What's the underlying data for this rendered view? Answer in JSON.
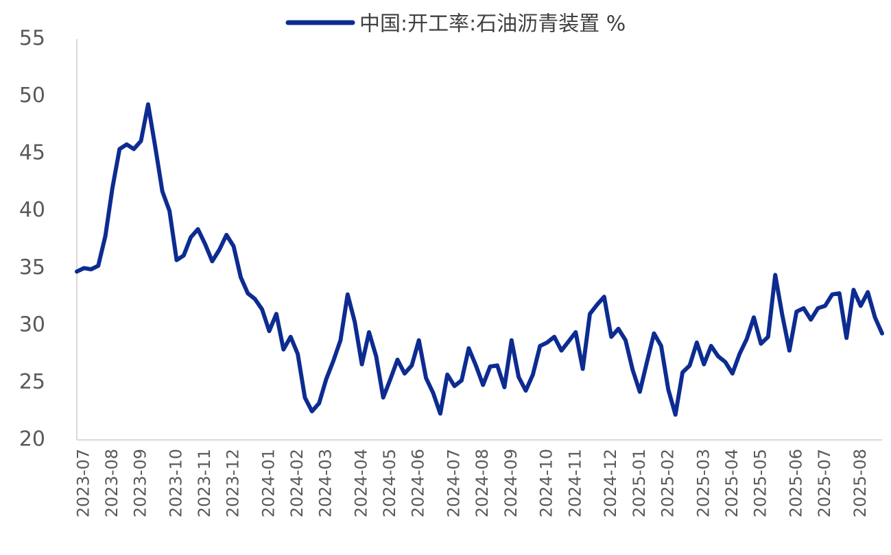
{
  "chart_data": {
    "type": "line",
    "categories": [
      null,
      "2023-07",
      null,
      null,
      null,
      "2023-08",
      null,
      null,
      null,
      "2023-09",
      null,
      null,
      null,
      null,
      "2023-10",
      null,
      null,
      null,
      "2023-11",
      null,
      null,
      null,
      "2023-12",
      null,
      null,
      null,
      null,
      "2024-01",
      null,
      null,
      null,
      "2024-02",
      null,
      null,
      null,
      "2024-03",
      null,
      null,
      null,
      null,
      "2024-04",
      null,
      null,
      null,
      "2024-05",
      null,
      null,
      null,
      "2024-06",
      null,
      null,
      null,
      null,
      "2024-07",
      null,
      null,
      null,
      "2024-08",
      null,
      null,
      null,
      "2024-09",
      null,
      null,
      null,
      null,
      "2024-10",
      null,
      null,
      null,
      "2024-11",
      null,
      null,
      null,
      null,
      "2024-12",
      null,
      null,
      null,
      "2025-01",
      null,
      null,
      null,
      "2025-02",
      null,
      null,
      null,
      null,
      "2025-03",
      null,
      null,
      null,
      "2025-04",
      null,
      null,
      null,
      "2025-05",
      null,
      null,
      null,
      null,
      "2025-06",
      null,
      null,
      null,
      "2025-07",
      null,
      null,
      null,
      null,
      "2025-08",
      null,
      null,
      null
    ],
    "series": [
      {
        "name": "中国:开工率:石油沥青装置 %",
        "color": "#0d2c91",
        "values": [
          34.7,
          35.0,
          34.9,
          35.2,
          37.8,
          42.0,
          45.4,
          45.8,
          45.4,
          46.1,
          49.3,
          45.6,
          41.7,
          40.0,
          35.7,
          36.1,
          37.7,
          38.4,
          37.1,
          35.6,
          36.6,
          37.9,
          36.9,
          34.2,
          32.8,
          32.3,
          31.4,
          29.5,
          31.0,
          27.9,
          29.0,
          27.5,
          23.7,
          22.5,
          23.2,
          25.3,
          26.9,
          28.7,
          32.7,
          30.3,
          26.6,
          29.4,
          27.3,
          23.7,
          25.3,
          27.0,
          25.8,
          26.5,
          28.7,
          25.4,
          24.1,
          22.3,
          25.7,
          24.7,
          25.2,
          28.0,
          26.5,
          24.8,
          26.4,
          26.5,
          24.6,
          28.7,
          25.5,
          24.3,
          25.7,
          28.2,
          28.5,
          29.0,
          27.8,
          28.6,
          29.4,
          26.2,
          31.0,
          31.8,
          32.5,
          29.0,
          29.7,
          28.7,
          26.1,
          24.2,
          26.8,
          29.3,
          28.2,
          24.4,
          22.2,
          25.9,
          26.5,
          28.5,
          26.6,
          28.2,
          27.3,
          26.8,
          25.8,
          27.5,
          28.8,
          30.7,
          28.4,
          29.0,
          34.4,
          30.9,
          27.8,
          31.2,
          31.5,
          30.5,
          31.5,
          31.7,
          32.7,
          32.8,
          28.9,
          33.1,
          31.7,
          32.9,
          30.7,
          29.3
        ]
      }
    ],
    "ylim": [
      20,
      55
    ],
    "yticks": [
      20,
      25,
      30,
      35,
      40,
      45,
      50,
      55
    ],
    "grid": false,
    "legend": "top"
  }
}
